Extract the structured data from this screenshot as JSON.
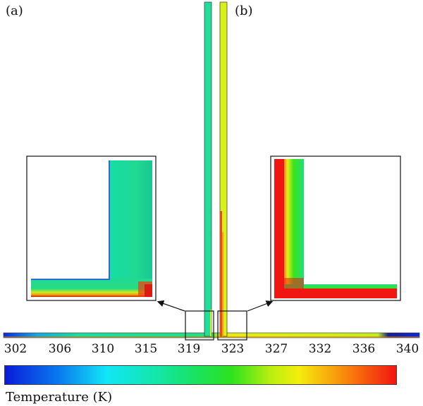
{
  "panels": {
    "a": "(a)",
    "b": "(b)"
  },
  "colorbar": {
    "title": "Temperature (K)",
    "ticks": [
      "302",
      "306",
      "310",
      "315",
      "319",
      "323",
      "327",
      "332",
      "336",
      "340"
    ],
    "range": [
      302,
      340
    ],
    "colors": [
      "#0a1bd8",
      "#11e6f6",
      "#19e266",
      "#2de21d",
      "#f2ee0a",
      "#f75a0c",
      "#f01612"
    ]
  },
  "colors": {
    "pipe_a": "#22dd9a",
    "pipe_b": "#d8f016",
    "hot": "#f01612",
    "cold": "#0a1bd8"
  }
}
